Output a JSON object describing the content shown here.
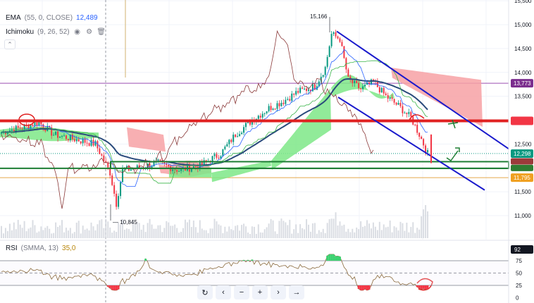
{
  "legend": {
    "ema": {
      "name": "EMA",
      "params": "(55, 0, CLOSE)",
      "value": "12,489"
    },
    "ichimoku": {
      "name": "Ichimoku",
      "params": "(9, 26, 52)"
    },
    "rsi": {
      "name": "RSI",
      "params": "(SMMA, 13)",
      "value": "35,0"
    }
  },
  "price_axis": {
    "ticks": [
      "15,500",
      "15,000",
      "14,500",
      "14,000",
      "13,500",
      "12,500",
      "11,500",
      "11,000"
    ],
    "tags": [
      {
        "label": "13,773",
        "color": "#7b2d8e"
      },
      {
        "label": "12,298",
        "color": "#089981"
      },
      {
        "label": "11,795",
        "color": "#f0a020"
      }
    ]
  },
  "rsi_axis": {
    "ticks": [
      "75",
      "50",
      "25",
      "0"
    ],
    "tag": {
      "label": "92",
      "color": "#131722"
    }
  },
  "annotations": {
    "high": "15,166",
    "low": "10,845"
  },
  "toolbar": {
    "items": [
      {
        "name": "reset-icon",
        "glyph": "↻"
      },
      {
        "name": "scroll-left-icon",
        "glyph": "‹"
      },
      {
        "name": "zoom-out-icon",
        "glyph": "−"
      },
      {
        "name": "zoom-in-icon",
        "glyph": "+"
      },
      {
        "name": "scroll-right-icon",
        "glyph": "›"
      },
      {
        "name": "go-to-realtime-icon",
        "glyph": "→"
      }
    ]
  },
  "colors": {
    "bull": "#089981",
    "bear": "#f23645",
    "cloud_bull": "#7ee787",
    "cloud_bear": "#f7a1a4",
    "ema": "#2a4b7c",
    "channel": "#1a1acc",
    "support": "#1e7e34",
    "resistance": "#e02020"
  },
  "chart_data": {
    "type": "candlestick",
    "price_range": [
      10700,
      15600
    ],
    "rsi_range": [
      0,
      100
    ],
    "high": 15166,
    "low": 10845,
    "levels": [
      13773,
      12298,
      11795
    ]
  }
}
